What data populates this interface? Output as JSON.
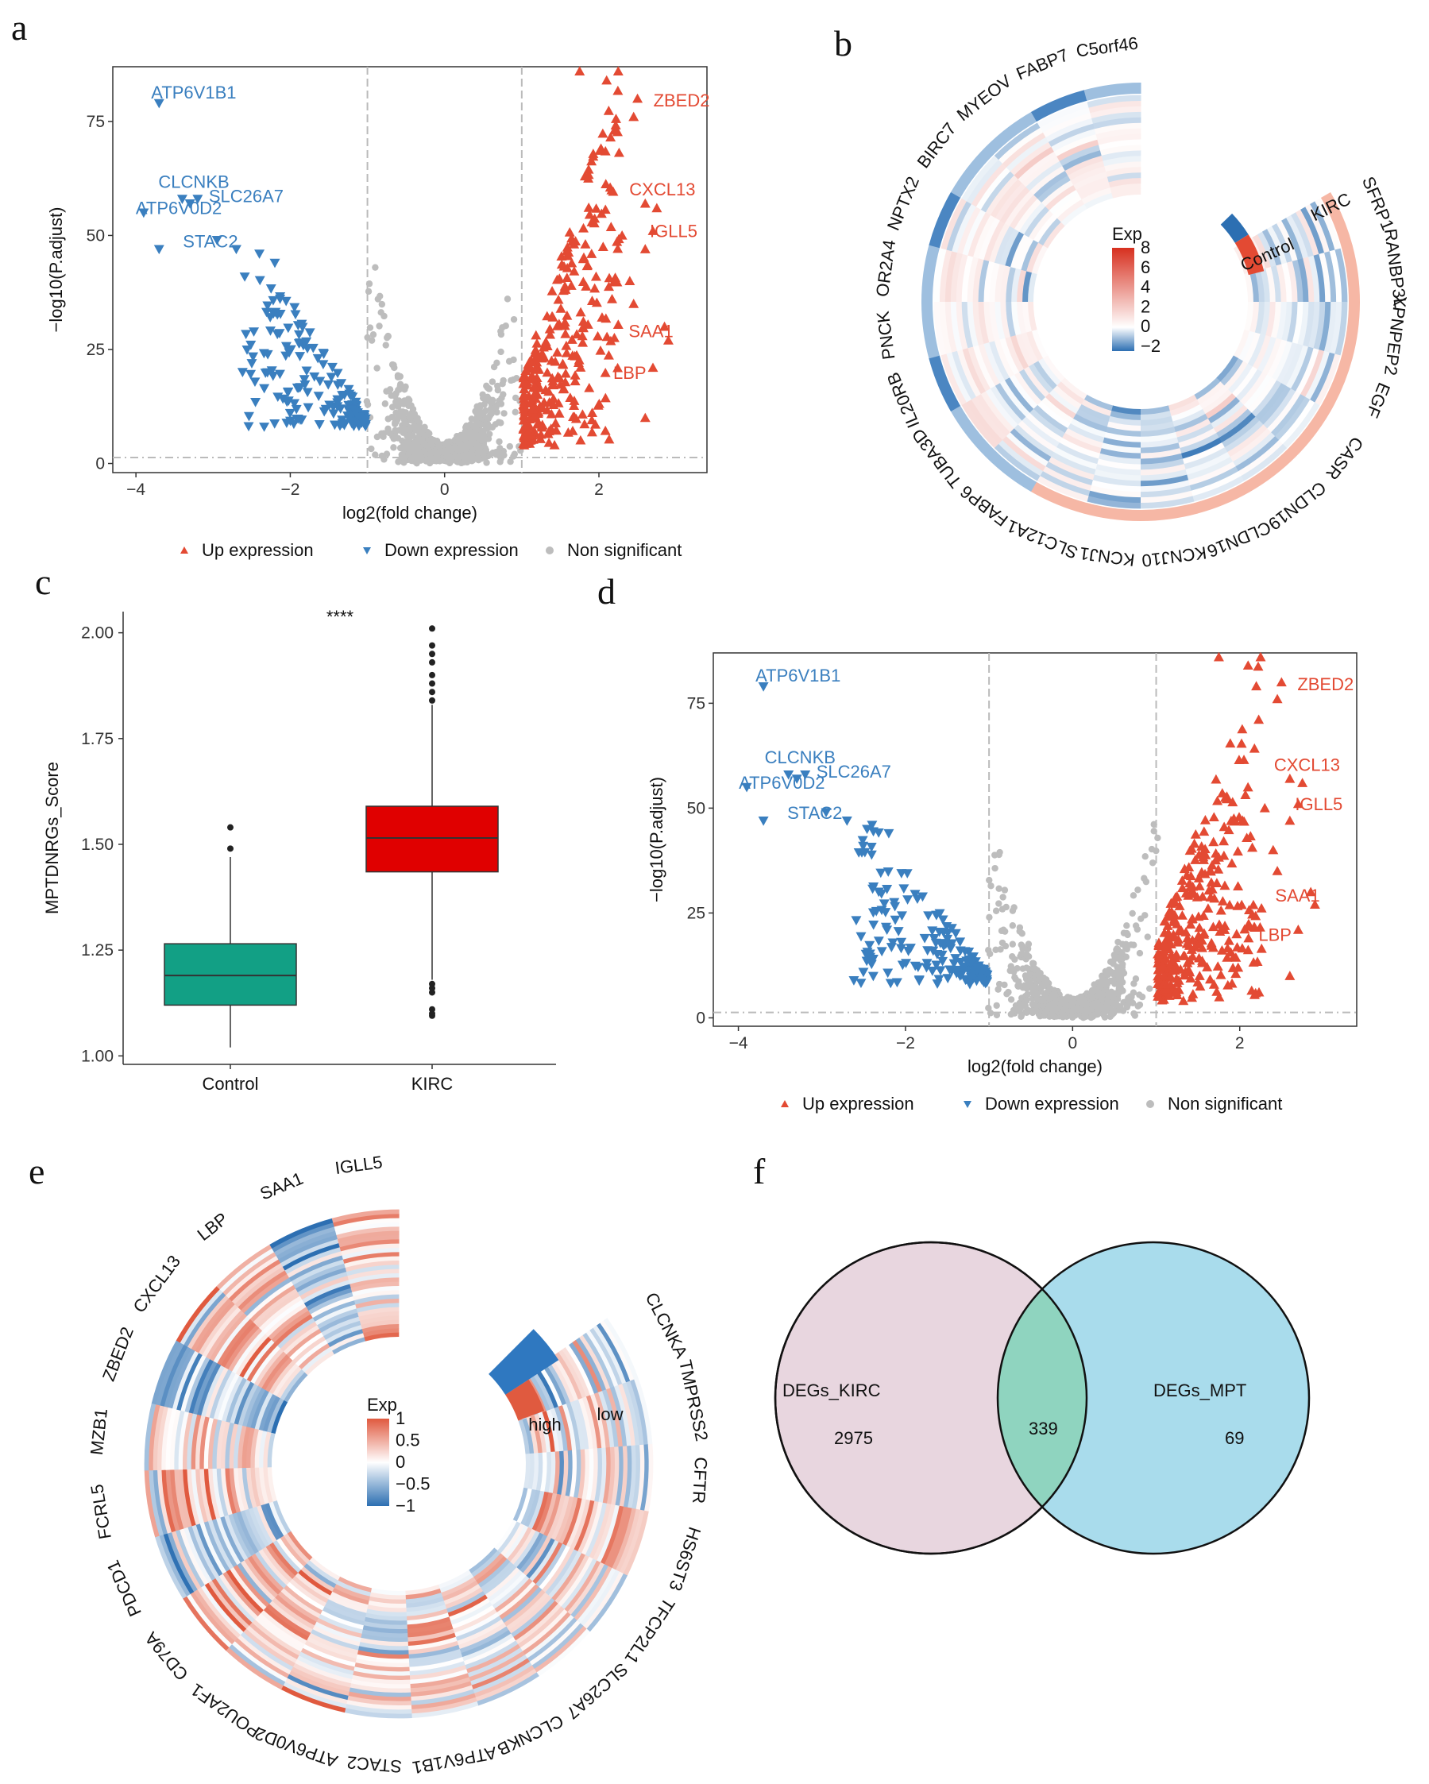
{
  "panels": [
    "a",
    "b",
    "c",
    "d",
    "e",
    "f"
  ],
  "chart_data": [
    {
      "id": "a",
      "type": "scatter",
      "title": "",
      "xlabel": "log2(fold change)",
      "ylabel": "−log10(P.adjust)",
      "xlim": [
        -4.3,
        3.4
      ],
      "ylim": [
        -2,
        87
      ],
      "xticks": [
        -4,
        -2,
        0,
        2
      ],
      "xtick_labels": [
        "−4",
        "−2",
        "0",
        "2"
      ],
      "yticks": [
        0,
        25,
        50,
        75
      ],
      "thresholds": {
        "x": [
          -1,
          1
        ],
        "y": 1.3
      },
      "legend": [
        "Up expression",
        "Down expression",
        "Non significant"
      ],
      "colors": {
        "up": "#e34a33",
        "down": "#3a7fbf",
        "ns": "#bdbdbd",
        "axis": "#333333"
      },
      "labeled_genes": [
        {
          "name": "ATP6V1B1",
          "x": -3.7,
          "y": 79,
          "group": "down"
        },
        {
          "name": "CLCNKB",
          "x": -3.4,
          "y": 58,
          "group": "down"
        },
        {
          "name": "SLC26A7",
          "x": -3.2,
          "y": 58,
          "group": "down"
        },
        {
          "name": "ATP6V0D2",
          "x": -3.9,
          "y": 55,
          "group": "down"
        },
        {
          "name": "STAC2",
          "x": -3.7,
          "y": 47,
          "group": "down"
        },
        {
          "name": "ZBED2",
          "x": 2.5,
          "y": 80,
          "group": "up"
        },
        {
          "name": "CXCL13",
          "x": 2.6,
          "y": 57,
          "group": "up"
        },
        {
          "name": "IGLL5",
          "x": 2.7,
          "y": 51,
          "group": "up"
        },
        {
          "name": "SAA1",
          "x": 2.9,
          "y": 27,
          "group": "up"
        },
        {
          "name": "LBP",
          "x": 2.7,
          "y": 21,
          "group": "up"
        }
      ]
    },
    {
      "id": "b",
      "type": "heatmap",
      "layout": "circular",
      "genes": [
        "SFRP1",
        "RANBP3L",
        "XPNPEP2",
        "EGF",
        "CASR",
        "CLDN19",
        "CLDN16",
        "KCNJ10",
        "KCNJ1",
        "SLC12A1",
        "FABP6",
        "TUBA3D",
        "IL20RB",
        "PNCK",
        "OR2A4",
        "NPTX2",
        "BIRC7",
        "MYEOV",
        "FABP7",
        "C5orf46"
      ],
      "groups": [
        "Control",
        "KIRC"
      ],
      "legend_title": "Exp",
      "legend_ticks": [
        8,
        6,
        4,
        2,
        0,
        -2
      ],
      "legend_tick_labels": [
        "8",
        "6",
        "4",
        "2",
        "0",
        "−2"
      ],
      "colors": {
        "high": "#d7301f",
        "mid": "#ffffff",
        "low": "#2c6fb2",
        "control": "#2c6fb2",
        "kirc": "#e34a33"
      }
    },
    {
      "id": "c",
      "type": "box",
      "title": "",
      "xlabel": "",
      "ylabel": "MPTDNRGs_Score",
      "ylim": [
        0.98,
        2.05
      ],
      "yticks": [
        1.0,
        1.25,
        1.5,
        1.75,
        2.0
      ],
      "ytick_labels": [
        "1.00",
        "1.25",
        "1.50",
        "1.75",
        "2.00"
      ],
      "significance": "****",
      "groups": [
        {
          "name": "Control",
          "min": 1.02,
          "q1": 1.12,
          "median": 1.19,
          "q3": 1.265,
          "max": 1.47,
          "outliers": [
            1.49,
            1.54
          ],
          "color": "#12a085"
        },
        {
          "name": "KIRC",
          "min": 1.18,
          "q1": 1.435,
          "median": 1.515,
          "q3": 1.59,
          "max": 1.83,
          "outliers": [
            1.84,
            1.86,
            1.88,
            1.9,
            1.93,
            1.95,
            1.97,
            2.01,
            1.17,
            1.16,
            1.15,
            1.11,
            1.1,
            1.095
          ],
          "color": "#e00000"
        }
      ]
    },
    {
      "id": "d",
      "type": "scatter",
      "title": "",
      "xlabel": "log2(fold change)",
      "ylabel": "−log10(P.adjust)",
      "xlim": [
        -4.3,
        3.4
      ],
      "ylim": [
        -2,
        87
      ],
      "xticks": [
        -4,
        -2,
        0,
        2
      ],
      "xtick_labels": [
        "−4",
        "−2",
        "0",
        "2"
      ],
      "yticks": [
        0,
        25,
        50,
        75
      ],
      "thresholds": {
        "x": [
          -1,
          1
        ],
        "y": 1.3
      },
      "legend": [
        "Up expression",
        "Down expression",
        "Non significant"
      ],
      "colors": {
        "up": "#e34a33",
        "down": "#3a7fbf",
        "ns": "#bdbdbd",
        "axis": "#333333"
      },
      "labeled_genes": [
        {
          "name": "ATP6V1B1",
          "x": -3.7,
          "y": 79,
          "group": "down"
        },
        {
          "name": "CLCNKB",
          "x": -3.4,
          "y": 58,
          "group": "down"
        },
        {
          "name": "SLC26A7",
          "x": -3.2,
          "y": 58,
          "group": "down"
        },
        {
          "name": "ATP6V0D2",
          "x": -3.9,
          "y": 55,
          "group": "down"
        },
        {
          "name": "STAC2",
          "x": -3.7,
          "y": 47,
          "group": "down"
        },
        {
          "name": "ZBED2",
          "x": 2.5,
          "y": 80,
          "group": "up"
        },
        {
          "name": "CXCL13",
          "x": 2.6,
          "y": 57,
          "group": "up"
        },
        {
          "name": "IGLL5",
          "x": 2.7,
          "y": 51,
          "group": "up"
        },
        {
          "name": "SAA1",
          "x": 2.9,
          "y": 27,
          "group": "up"
        },
        {
          "name": "LBP",
          "x": 2.7,
          "y": 21,
          "group": "up"
        }
      ]
    },
    {
      "id": "e",
      "type": "heatmap",
      "layout": "circular",
      "genes": [
        "CLCNKA",
        "TMPRSS2",
        "CFTR",
        "HS6ST3",
        "TFCP2L1",
        "SLC26A7",
        "CLCNKB",
        "ATP6V1B1",
        "STAC2",
        "ATP6V0D2",
        "POU2AF1",
        "CD79A",
        "PDCD1",
        "FCRL5",
        "MZB1",
        "ZBED2",
        "CXCL13",
        "LBP",
        "SAA1",
        "IGLL5"
      ],
      "groups": [
        "high",
        "low"
      ],
      "legend_title": "Exp",
      "legend_ticks": [
        1,
        0.5,
        0,
        -0.5,
        -1
      ],
      "legend_tick_labels": [
        "1",
        "0.5",
        "0",
        "−0.5",
        "−1"
      ],
      "colors": {
        "high": "#e05a3f",
        "mid": "#ffffff",
        "low": "#2c6fb2",
        "highgroup": "#e05a3f",
        "lowgroup": "#2f78c0"
      }
    },
    {
      "id": "f",
      "type": "venn",
      "sets": [
        {
          "name": "DEGs_KIRC",
          "only": "2975",
          "color": "#e8d6df"
        },
        {
          "name": "DEGs_MPT",
          "only": "69",
          "color": "#a9dcec"
        }
      ],
      "intersection": "339",
      "intersection_color": "#8fd4bf"
    }
  ]
}
